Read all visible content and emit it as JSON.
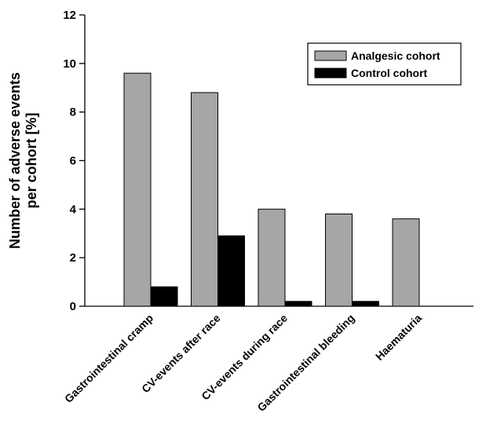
{
  "chart_data": {
    "type": "bar",
    "title": "",
    "xlabel": "",
    "ylabel_lines": [
      "Number of adverse events",
      "per cohort [%]"
    ],
    "categories": [
      "Gastrointestinal cramp",
      "CV-events after race",
      "CV-events during race",
      "Gastrointestinal bleeding",
      "Haematuria"
    ],
    "series": [
      {
        "name": "Analgesic cohort",
        "color": "#a6a6a6",
        "values": [
          9.6,
          8.8,
          4.0,
          3.8,
          3.6
        ]
      },
      {
        "name": "Control cohort",
        "color": "#000000",
        "values": [
          0.8,
          2.9,
          0.2,
          0.2,
          0.0
        ]
      }
    ],
    "ylim": [
      0,
      12
    ],
    "yticks": [
      0,
      2,
      4,
      6,
      8,
      10,
      12
    ],
    "grid": false,
    "legend_position": "top-right"
  }
}
